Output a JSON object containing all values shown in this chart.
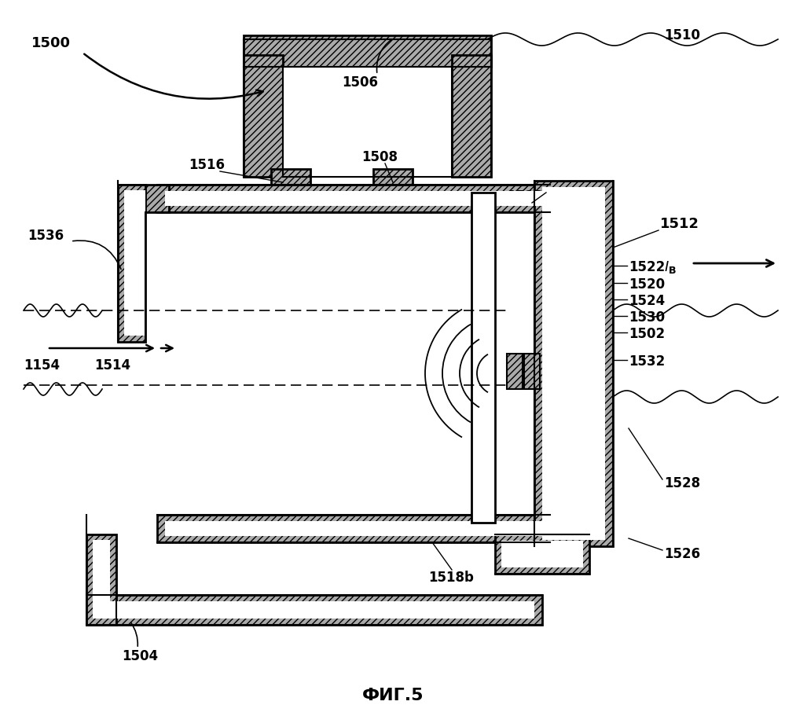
{
  "figure_label": "ФИГ.5",
  "bg_color": "#ffffff"
}
